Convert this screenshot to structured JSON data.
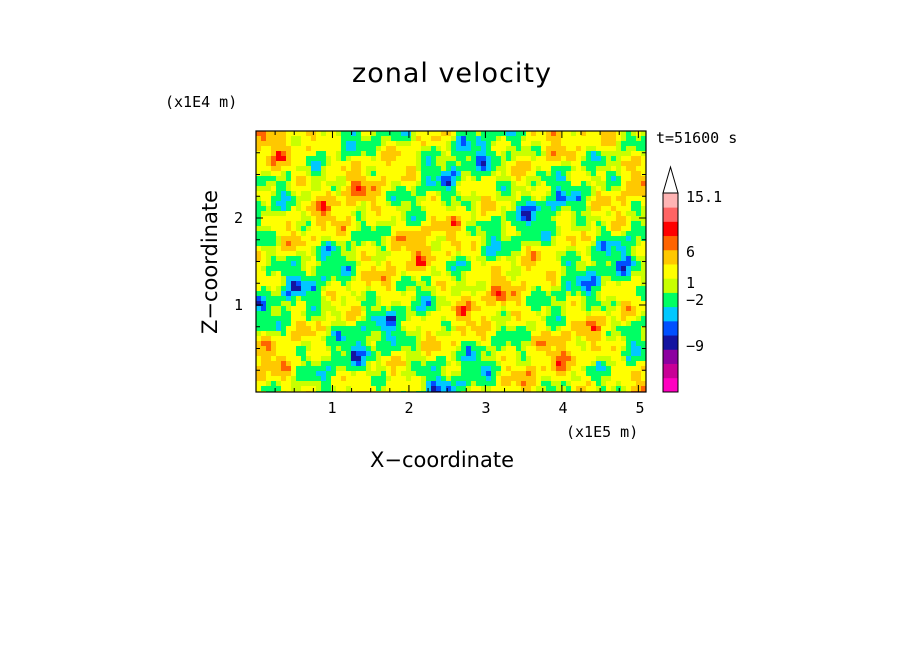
{
  "chart_data": {
    "type": "heatmap",
    "title": "zonal velocity",
    "xlabel": "X−coordinate",
    "ylabel": "Z−coordinate",
    "x_scale_note": "(x1E5 m)",
    "y_scale_note": "(x1E4 m)",
    "time_label": "t=51600 s",
    "xlim": [
      0,
      5.1
    ],
    "ylim": [
      0,
      3.0
    ],
    "x_ticks": [
      "1",
      "2",
      "3",
      "4",
      "5"
    ],
    "y_ticks": [
      "1",
      "2"
    ],
    "colorbar": {
      "tick_labels": [
        "15.1",
        "6",
        "1",
        "−2",
        "−9"
      ],
      "colors": [
        "#ff00c0",
        "#c80096",
        "#8c00a0",
        "#1414a0",
        "#0050ff",
        "#00c8ff",
        "#00ff64",
        "#c8ff00",
        "#ffff00",
        "#ffc800",
        "#ff6400",
        "#ff0000",
        "#ff6464",
        "#ffb4b4",
        "#ffffff"
      ]
    }
  }
}
